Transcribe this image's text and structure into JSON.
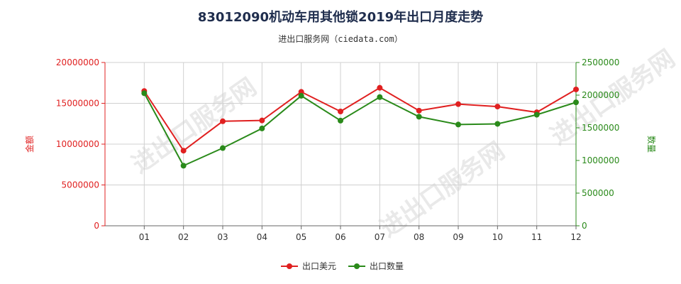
{
  "title": "83012090机动车用其他锁2019年出口月度走势",
  "subtitle": "进出口服务网（ciedata.com）",
  "watermark": "进出口服务网",
  "colors": {
    "left_axis": "#e02020",
    "right_axis": "#2a8a1a",
    "grid": "#d0d0d0"
  },
  "chart_data": {
    "type": "line",
    "categories": [
      "01",
      "02",
      "03",
      "04",
      "05",
      "06",
      "07",
      "08",
      "09",
      "10",
      "11",
      "12"
    ],
    "left_axis": {
      "label": "金额",
      "min": 0,
      "max": 20000000,
      "ticks": [
        "0",
        "5000000",
        "10000000",
        "15000000",
        "20000000"
      ]
    },
    "right_axis": {
      "label": "数量",
      "min": 0,
      "max": 2500000,
      "ticks": [
        "0",
        "500000",
        "1000000",
        "1500000",
        "2000000",
        "2500000"
      ]
    },
    "series": [
      {
        "name": "出口美元",
        "axis": "left",
        "color": "#e02020",
        "values": [
          16500000,
          9200000,
          12800000,
          12900000,
          16400000,
          14000000,
          16900000,
          14100000,
          14900000,
          14600000,
          13900000,
          16700000
        ]
      },
      {
        "name": "出口数量",
        "axis": "right",
        "color": "#2a8a1a",
        "values": [
          2030000,
          920000,
          1190000,
          1490000,
          1990000,
          1610000,
          1970000,
          1670000,
          1550000,
          1560000,
          1700000,
          1890000
        ]
      }
    ],
    "grid": true,
    "legend_position": "bottom-center"
  }
}
